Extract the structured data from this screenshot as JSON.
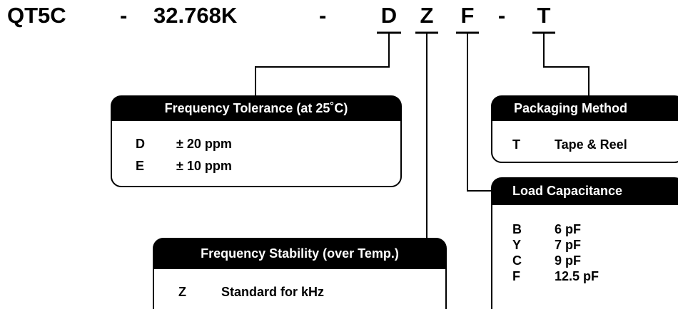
{
  "part_number": {
    "segments": [
      "QT5C",
      "-",
      "32.768K",
      "-",
      "D",
      "Z",
      "F",
      "-",
      "T"
    ]
  },
  "boxes": [
    {
      "title": "Frequency Tolerance (at 25˚C)",
      "rows": [
        [
          "D",
          "± 20 ppm"
        ],
        [
          "E",
          "± 10 ppm"
        ]
      ]
    },
    {
      "title": "Packaging Method",
      "rows": [
        [
          "T",
          "Tape & Reel"
        ]
      ]
    },
    {
      "title": "Load Capacitance",
      "rows": [
        [
          "B",
          "6 pF"
        ],
        [
          "Y",
          "7 pF"
        ],
        [
          "C",
          "9 pF"
        ],
        [
          "F",
          "12.5 pF"
        ]
      ]
    },
    {
      "title": "Frequency Stability (over Temp.)",
      "rows": [
        [
          "Z",
          "Standard for kHz"
        ]
      ]
    }
  ]
}
